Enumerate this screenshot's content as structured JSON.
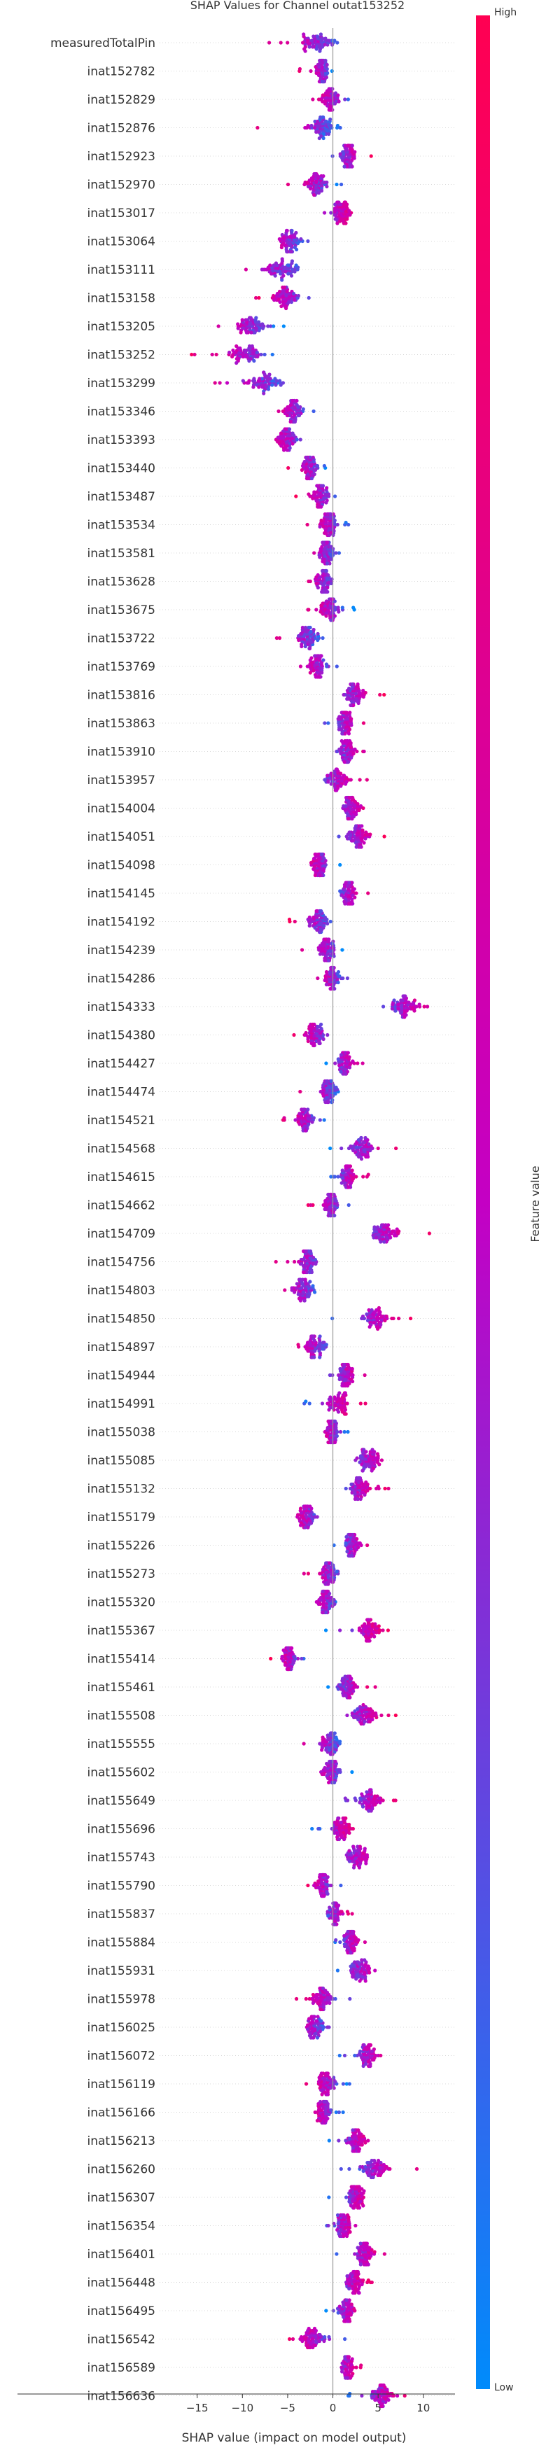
{
  "chart_data": {
    "type": "scatter",
    "subtype": "shap-beeswarm",
    "title": "SHAP Values for Channel outat153252",
    "xlabel": "SHAP value (impact on model output)",
    "xlim": [
      -19,
      13.5
    ],
    "xticks": [
      -15,
      -10,
      -5,
      0,
      5,
      10
    ],
    "colorbar": {
      "label": "Feature value",
      "high_label": "High",
      "low_label": "Low",
      "high_color": "#ff0052",
      "mid_color": "#c400c4",
      "low_color": "#008bfb"
    },
    "features": [
      {
        "name": "measuredTotalPin",
        "lo": -8.5,
        "hi": 2.3,
        "mean": -1.7
      },
      {
        "name": "inat152782",
        "lo": -3.7,
        "hi": 0.4,
        "mean": -1.2
      },
      {
        "name": "inat152829",
        "lo": -3.6,
        "hi": 3.2,
        "mean": -0.3
      },
      {
        "name": "inat152876",
        "lo": -8.5,
        "hi": 1.2,
        "mean": -1.1
      },
      {
        "name": "inat152923",
        "lo": -0.6,
        "hi": 4.3,
        "mean": 1.7
      },
      {
        "name": "inat152970",
        "lo": -5.5,
        "hi": 1.1,
        "mean": -1.9
      },
      {
        "name": "inat153017",
        "lo": -2.8,
        "hi": 3.3,
        "mean": 0.8
      },
      {
        "name": "inat153064",
        "lo": -8.8,
        "hi": -2.2,
        "mean": -4.7
      },
      {
        "name": "inat153111",
        "lo": -13.1,
        "hi": -1.9,
        "mean": -5.7
      },
      {
        "name": "inat153158",
        "lo": -8.7,
        "hi": -1.6,
        "mean": -5.2
      },
      {
        "name": "inat153205",
        "lo": -14.7,
        "hi": -5.2,
        "mean": -8.9
      },
      {
        "name": "inat153252",
        "lo": -16.1,
        "hi": -5.0,
        "mean": -9.6
      },
      {
        "name": "inat153299",
        "lo": -15.8,
        "hi": -3.8,
        "mean": -7.4
      },
      {
        "name": "inat153346",
        "lo": -7.6,
        "hi": -1.7,
        "mean": -4.3
      },
      {
        "name": "inat153393",
        "lo": -8.6,
        "hi": -1.9,
        "mean": -5.1
      },
      {
        "name": "inat153440",
        "lo": -5.4,
        "hi": -0.4,
        "mean": -2.6
      },
      {
        "name": "inat153487",
        "lo": -4.2,
        "hi": 1.2,
        "mean": -1.2
      },
      {
        "name": "inat153534",
        "lo": -3.8,
        "hi": 2.6,
        "mean": -0.5
      },
      {
        "name": "inat153581",
        "lo": -4.6,
        "hi": 1.4,
        "mean": -0.8
      },
      {
        "name": "inat153628",
        "lo": -4.1,
        "hi": 1.2,
        "mean": -1.0
      },
      {
        "name": "inat153675",
        "lo": -3.5,
        "hi": 2.5,
        "mean": -0.3
      },
      {
        "name": "inat153722",
        "lo": -7.7,
        "hi": -0.4,
        "mean": -2.8
      },
      {
        "name": "inat153769",
        "lo": -4.6,
        "hi": 1.0,
        "mean": -1.7
      },
      {
        "name": "inat153816",
        "lo": -0.6,
        "hi": 5.9,
        "mean": 2.4
      },
      {
        "name": "inat153863",
        "lo": -1.3,
        "hi": 4.1,
        "mean": 1.3
      },
      {
        "name": "inat153910",
        "lo": -0.7,
        "hi": 4.4,
        "mean": 1.6
      },
      {
        "name": "inat153957",
        "lo": -3.2,
        "hi": 4.2,
        "mean": 0.5
      },
      {
        "name": "inat154004",
        "lo": -1.0,
        "hi": 4.6,
        "mean": 2.0
      },
      {
        "name": "inat154051",
        "lo": -0.4,
        "hi": 6.1,
        "mean": 2.8
      },
      {
        "name": "inat154098",
        "lo": -3.8,
        "hi": 0.8,
        "mean": -1.5
      },
      {
        "name": "inat154145",
        "lo": -0.3,
        "hi": 4.0,
        "mean": 1.7
      },
      {
        "name": "inat154192",
        "lo": -5.0,
        "hi": 0.3,
        "mean": -1.6
      },
      {
        "name": "inat154239",
        "lo": -3.7,
        "hi": 1.6,
        "mean": -0.6
      },
      {
        "name": "inat154286",
        "lo": -2.9,
        "hi": 2.1,
        "mean": 0.0
      },
      {
        "name": "inat154333",
        "lo": 4.0,
        "hi": 12.2,
        "mean": 7.8
      },
      {
        "name": "inat154380",
        "lo": -5.1,
        "hi": 0.9,
        "mean": -1.9
      },
      {
        "name": "inat154427",
        "lo": -1.0,
        "hi": 3.9,
        "mean": 1.3
      },
      {
        "name": "inat154474",
        "lo": -3.9,
        "hi": 1.2,
        "mean": -0.4
      },
      {
        "name": "inat154521",
        "lo": -6.0,
        "hi": -0.6,
        "mean": -3.1
      },
      {
        "name": "inat154568",
        "lo": -0.4,
        "hi": 8.2,
        "mean": 3.3
      },
      {
        "name": "inat154615",
        "lo": -0.8,
        "hi": 4.1,
        "mean": 1.6
      },
      {
        "name": "inat154662",
        "lo": -2.8,
        "hi": 1.9,
        "mean": -0.2
      },
      {
        "name": "inat154709",
        "lo": 1.1,
        "hi": 11.1,
        "mean": 6.0
      },
      {
        "name": "inat154756",
        "lo": -6.4,
        "hi": -0.4,
        "mean": -2.7
      },
      {
        "name": "inat154803",
        "lo": -7.4,
        "hi": -0.4,
        "mean": -3.5
      },
      {
        "name": "inat154850",
        "lo": -0.3,
        "hi": 9.6,
        "mean": 4.8
      },
      {
        "name": "inat154897",
        "lo": -5.6,
        "hi": 0.8,
        "mean": -1.9
      },
      {
        "name": "inat154944",
        "lo": -1.3,
        "hi": 3.9,
        "mean": 1.4
      },
      {
        "name": "inat154991",
        "lo": -4.4,
        "hi": 3.7,
        "mean": 0.5
      },
      {
        "name": "inat155038",
        "lo": -2.4,
        "hi": 1.9,
        "mean": -0.1
      },
      {
        "name": "inat155085",
        "lo": -0.3,
        "hi": 8.4,
        "mean": 4.1
      },
      {
        "name": "inat155132",
        "lo": -0.5,
        "hi": 6.2,
        "mean": 2.9
      },
      {
        "name": "inat155179",
        "lo": -5.8,
        "hi": -0.3,
        "mean": -2.9
      },
      {
        "name": "inat155226",
        "lo": -0.3,
        "hi": 5.4,
        "mean": 2.2
      },
      {
        "name": "inat155273",
        "lo": -3.8,
        "hi": 1.9,
        "mean": -0.4
      },
      {
        "name": "inat155320",
        "lo": -3.8,
        "hi": 1.4,
        "mean": -0.7
      },
      {
        "name": "inat155367",
        "lo": -0.9,
        "hi": 6.6,
        "mean": 4.0
      },
      {
        "name": "inat155414",
        "lo": -7.0,
        "hi": -2.6,
        "mean": -4.9
      },
      {
        "name": "inat155461",
        "lo": -0.7,
        "hi": 4.7,
        "mean": 1.6
      },
      {
        "name": "inat155508",
        "lo": -0.4,
        "hi": 7.5,
        "mean": 3.6
      },
      {
        "name": "inat155555",
        "lo": -3.9,
        "hi": 1.7,
        "mean": -0.2
      },
      {
        "name": "inat155602",
        "lo": -3.7,
        "hi": 2.3,
        "mean": -0.2
      },
      {
        "name": "inat155649",
        "lo": -0.1,
        "hi": 8.2,
        "mean": 4.1
      },
      {
        "name": "inat155696",
        "lo": -2.8,
        "hi": 3.2,
        "mean": 0.9
      },
      {
        "name": "inat155743",
        "lo": -0.9,
        "hi": 6.3,
        "mean": 2.8
      },
      {
        "name": "inat155790",
        "lo": -3.4,
        "hi": 1.2,
        "mean": -1.1
      },
      {
        "name": "inat155837",
        "lo": -1.6,
        "hi": 2.4,
        "mean": 0.2
      },
      {
        "name": "inat155884",
        "lo": -0.2,
        "hi": 4.0,
        "mean": 2.0
      },
      {
        "name": "inat155931",
        "lo": -0.2,
        "hi": 6.9,
        "mean": 3.0
      },
      {
        "name": "inat155978",
        "lo": -4.7,
        "hi": 2.6,
        "mean": -1.3
      },
      {
        "name": "inat156025",
        "lo": -5.7,
        "hi": 0.4,
        "mean": -2.0
      },
      {
        "name": "inat156072",
        "lo": 0.4,
        "hi": 7.3,
        "mean": 3.8
      },
      {
        "name": "inat156119",
        "lo": -3.6,
        "hi": 2.2,
        "mean": -0.7
      },
      {
        "name": "inat156166",
        "lo": -3.3,
        "hi": 1.2,
        "mean": -1.0
      },
      {
        "name": "inat156213",
        "lo": -0.6,
        "hi": 5.2,
        "mean": 2.6
      },
      {
        "name": "inat156260",
        "lo": 0.4,
        "hi": 9.9,
        "mean": 4.6
      },
      {
        "name": "inat156307",
        "lo": -0.6,
        "hi": 5.0,
        "mean": 2.6
      },
      {
        "name": "inat156354",
        "lo": -1.7,
        "hi": 3.9,
        "mean": 1.2
      },
      {
        "name": "inat156401",
        "lo": 0.2,
        "hi": 6.4,
        "mean": 3.5
      },
      {
        "name": "inat156448",
        "lo": -0.6,
        "hi": 4.6,
        "mean": 2.4
      },
      {
        "name": "inat156495",
        "lo": -0.9,
        "hi": 4.1,
        "mean": 1.5
      },
      {
        "name": "inat156542",
        "lo": -5.5,
        "hi": 1.4,
        "mean": -2.3
      },
      {
        "name": "inat156589",
        "lo": -0.3,
        "hi": 3.2,
        "mean": 1.6
      },
      {
        "name": "inat156636",
        "lo": 1.7,
        "hi": 9.1,
        "mean": 5.4
      }
    ]
  }
}
